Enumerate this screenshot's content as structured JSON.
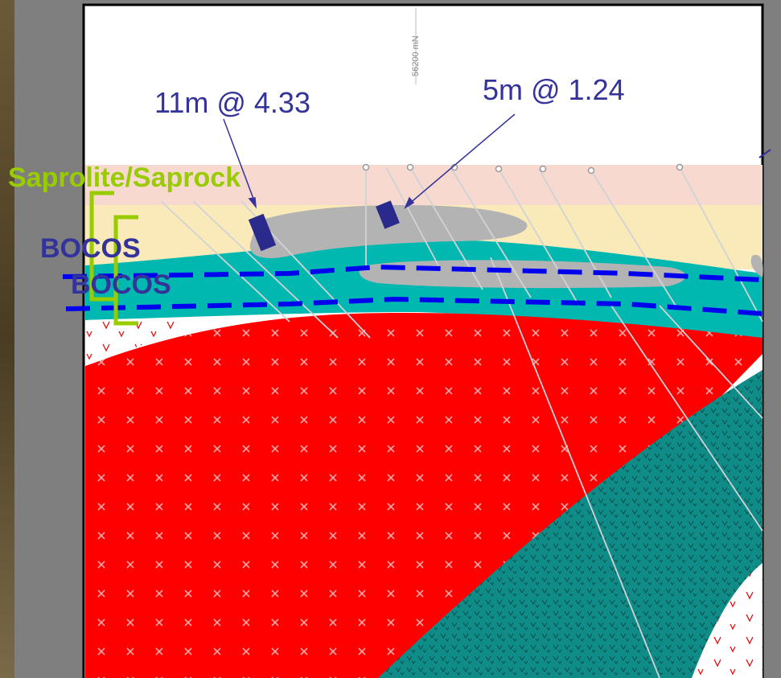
{
  "section": {
    "northing_label": "56200 mN"
  },
  "intercepts": [
    {
      "label": "11m @ 4.33"
    },
    {
      "label": "5m @ 1.24"
    }
  ],
  "units": {
    "saprolite": "Saprolite/Saprock",
    "bocos_upper": "BOCOS",
    "bocos_lower": "BOCOS"
  },
  "colors": {
    "background": "#808080",
    "rock_photo": "#5a4a2e",
    "granite": "#ff0000",
    "mafic": "#108c88",
    "saprolite_pink": "#f7d9cf",
    "saprolite_yellow": "#fbeab9",
    "clay_teal": "#00b8b0",
    "ore_grey": "#b3b3b3",
    "label_blue": "#333399",
    "label_green": "#99cc00",
    "boundary_dash": "#0000ee"
  }
}
